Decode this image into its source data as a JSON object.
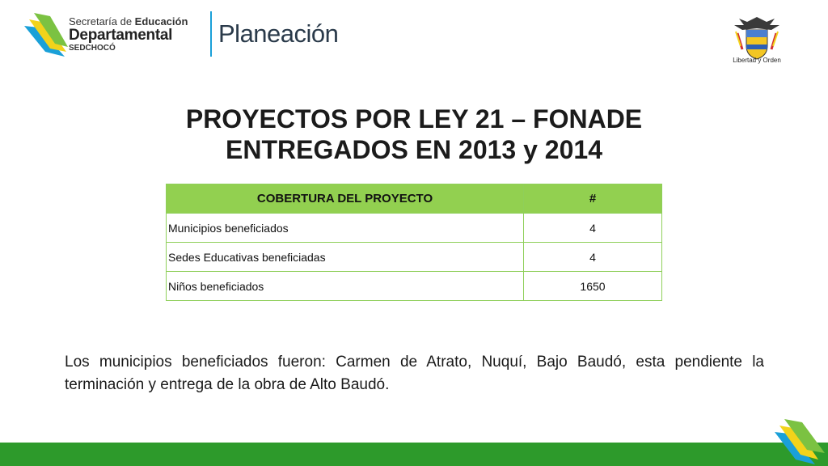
{
  "header": {
    "logo_line1_prefix": "Secretaría de ",
    "logo_line1_bold": "Educación",
    "logo_line2": "Departamental",
    "logo_line3": "SEDCHOCÓ",
    "logo_product": "Planeación",
    "seal_caption": "Libertad y Orden"
  },
  "title": {
    "line1": "PROYECTOS POR LEY 21 – FONADE",
    "line2": "ENTREGADOS EN 2013 y 2014"
  },
  "table": {
    "headers": [
      "COBERTURA DEL PROYECTO",
      "#"
    ],
    "rows": [
      [
        "Municipios beneficiados",
        "4"
      ],
      [
        "Sedes Educativas beneficiadas",
        "4"
      ],
      [
        "Niños beneficiados",
        "1650"
      ]
    ]
  },
  "paragraph": "Los municipios beneficiados fueron: Carmen de Atrato, Nuquí, Bajo Baudó, esta pendiente la terminación y entrega de la obra de Alto Baudó.",
  "colors": {
    "header_green": "#92d050",
    "footer_green": "#2d9a2b",
    "accent_blue": "#1aa0d8",
    "accent_yellow": "#f2d31b"
  }
}
